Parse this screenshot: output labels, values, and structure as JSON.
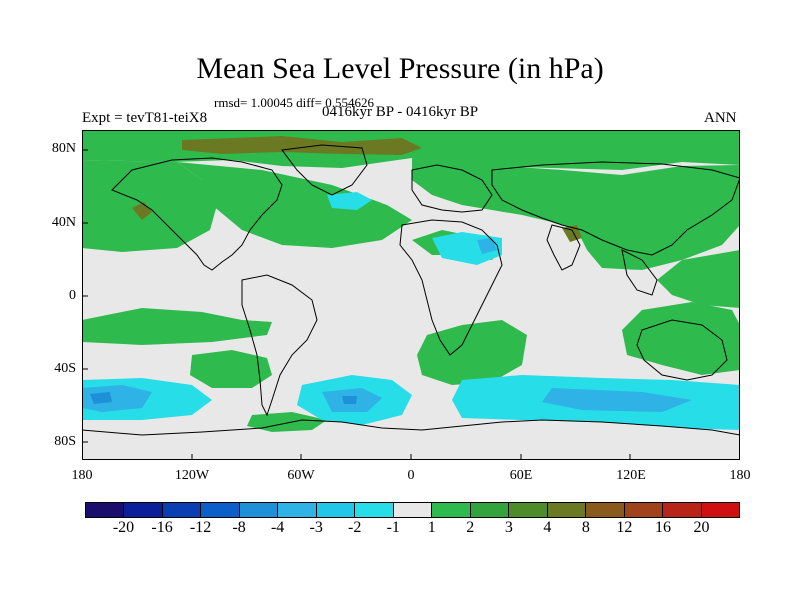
{
  "title": "Mean Sea Level Pressure (in hPa)",
  "stats": "rmsd= 1.00045 diff= 0.554626",
  "experiment": "Expt = tevT81-teiX8",
  "period": "0416kyr BP - 0416kyr BP",
  "season": "ANN",
  "lat_labels": [
    "80N",
    "40N",
    "0",
    "40S",
    "80S"
  ],
  "lon_labels": [
    "180",
    "120W",
    "60W",
    "0",
    "60E",
    "120E",
    "180"
  ],
  "legend": {
    "colors": [
      "#1b0d6b",
      "#0b1f9a",
      "#0a3fb4",
      "#0c5fc8",
      "#1e90d8",
      "#2fb2e6",
      "#22c6e8",
      "#26dde8",
      "#e8e8e8",
      "#2fba4e",
      "#33a43c",
      "#4e8b2a",
      "#6b7a22",
      "#8a5a1c",
      "#a0421a",
      "#b82418",
      "#d01010"
    ],
    "labels": [
      "-20",
      "-16",
      "-12",
      "-8",
      "-4",
      "-3",
      "-2",
      "-1",
      "1",
      "2",
      "3",
      "4",
      "8",
      "12",
      "16",
      "20"
    ]
  },
  "map_colors": {
    "neutral": "#e8e8e8",
    "green": "#2fba4e",
    "brown": "#6b7a22",
    "cyan": "#26dde8",
    "lightblue": "#2fb2e6",
    "midblue": "#1e90d8",
    "coast": "#000000"
  }
}
